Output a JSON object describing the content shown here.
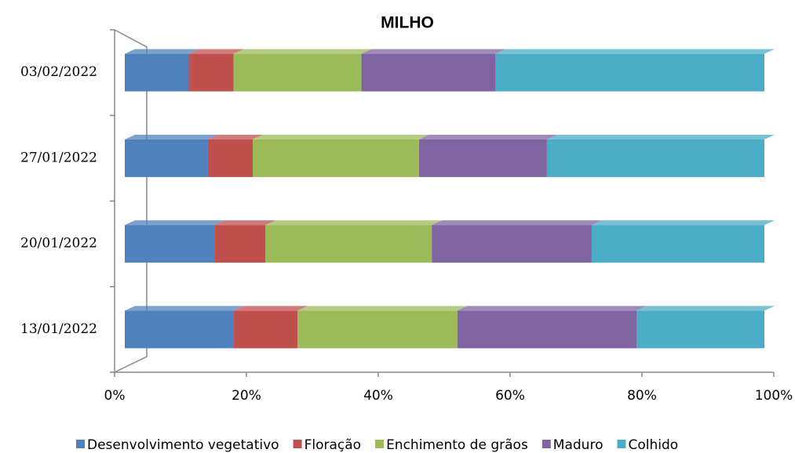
{
  "chart_data": {
    "type": "stacked-hbar",
    "title": "MILHO",
    "categories": [
      "13/01/2022",
      "20/01/2022",
      "27/01/2022",
      "03/02/2022"
    ],
    "series": [
      {
        "name": "Desenvolvimento vegetativo",
        "color": "#4f81bd",
        "values": [
          17,
          14,
          13,
          10
        ]
      },
      {
        "name": "Floração",
        "color": "#c0504d",
        "values": [
          10,
          8,
          7,
          7
        ]
      },
      {
        "name": "Enchimento de grãos",
        "color": "#9bbb59",
        "values": [
          25,
          26,
          26,
          20
        ]
      },
      {
        "name": "Maduro",
        "color": "#8064a2",
        "values": [
          28,
          25,
          20,
          21
        ]
      },
      {
        "name": "Colhido",
        "color": "#4bacc6",
        "values": [
          20,
          27,
          34,
          42
        ]
      }
    ],
    "xlim": [
      0,
      100
    ],
    "xticks": [
      {
        "value": 0,
        "label": "0%"
      },
      {
        "value": 20,
        "label": "20%"
      },
      {
        "value": 40,
        "label": "40%"
      },
      {
        "value": 60,
        "label": "60%"
      },
      {
        "value": 80,
        "label": "80%"
      },
      {
        "value": 100,
        "label": "100%"
      }
    ],
    "legend": "bottom"
  }
}
